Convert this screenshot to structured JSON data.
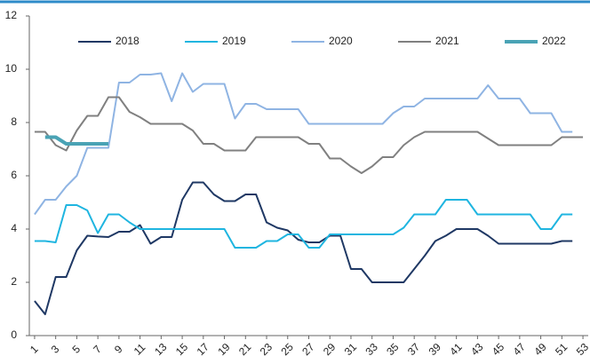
{
  "chart_data": {
    "type": "line",
    "x": [
      1,
      2,
      3,
      4,
      5,
      6,
      7,
      8,
      9,
      10,
      11,
      12,
      13,
      14,
      15,
      16,
      17,
      18,
      19,
      20,
      21,
      22,
      23,
      24,
      25,
      26,
      27,
      28,
      29,
      30,
      31,
      32,
      33,
      34,
      35,
      36,
      37,
      38,
      39,
      40,
      41,
      42,
      43,
      44,
      45,
      46,
      47,
      48,
      49,
      50,
      51,
      52,
      53
    ],
    "xlim": [
      0.5,
      53.5
    ],
    "xticks": [
      1,
      3,
      5,
      7,
      9,
      11,
      13,
      15,
      17,
      19,
      21,
      23,
      25,
      27,
      29,
      31,
      33,
      35,
      37,
      39,
      41,
      43,
      45,
      47,
      49,
      51,
      53
    ],
    "ylim": [
      0,
      12
    ],
    "yticks": [
      0,
      2,
      4,
      6,
      8,
      10,
      12
    ],
    "series": [
      {
        "name": "2018",
        "color": "#1f3864",
        "width": 2,
        "values": [
          1.3,
          0.8,
          2.2,
          2.2,
          3.2,
          3.75,
          3.72,
          3.7,
          3.9,
          3.9,
          4.15,
          3.45,
          3.7,
          3.7,
          5.1,
          5.75,
          5.75,
          5.3,
          5.05,
          5.05,
          5.3,
          5.3,
          4.25,
          4.05,
          3.95,
          3.6,
          3.5,
          3.5,
          3.75,
          3.75,
          2.5,
          2.5,
          2.0,
          2.0,
          2.0,
          2.0,
          2.5,
          3.0,
          3.55,
          3.75,
          4.0,
          4.0,
          4.0,
          3.75,
          3.45,
          3.45,
          3.45,
          3.45,
          3.45,
          3.45,
          3.55,
          3.55,
          null
        ]
      },
      {
        "name": "2019",
        "color": "#1fb5e0",
        "width": 2,
        "values": [
          3.55,
          3.55,
          3.5,
          4.9,
          4.9,
          4.7,
          3.85,
          4.55,
          4.55,
          4.25,
          4.0,
          4.0,
          4.0,
          4.0,
          4.0,
          4.0,
          4.0,
          4.0,
          4.0,
          3.3,
          3.3,
          3.3,
          3.55,
          3.55,
          3.8,
          3.8,
          3.3,
          3.3,
          3.8,
          3.8,
          3.8,
          3.8,
          3.8,
          3.8,
          3.8,
          4.05,
          4.55,
          4.55,
          4.55,
          5.1,
          5.1,
          5.1,
          4.55,
          4.55,
          4.55,
          4.55,
          4.55,
          4.55,
          4.0,
          4.0,
          4.55,
          4.55,
          null
        ]
      },
      {
        "name": "2020",
        "color": "#8fb4e3",
        "width": 2,
        "values": [
          4.55,
          5.1,
          5.1,
          5.6,
          6.0,
          7.05,
          7.05,
          7.05,
          9.5,
          9.5,
          9.8,
          9.8,
          9.85,
          8.8,
          9.85,
          9.15,
          9.45,
          9.45,
          9.45,
          8.15,
          8.7,
          8.7,
          8.5,
          8.5,
          8.5,
          8.5,
          7.95,
          7.95,
          7.95,
          7.95,
          7.95,
          7.95,
          7.95,
          7.95,
          8.35,
          8.6,
          8.6,
          8.9,
          8.9,
          8.9,
          8.9,
          8.9,
          8.9,
          9.4,
          8.9,
          8.9,
          8.9,
          8.35,
          8.35,
          8.35,
          7.65,
          7.65,
          null
        ]
      },
      {
        "name": "2021",
        "color": "#808080",
        "width": 2,
        "values": [
          7.65,
          7.65,
          7.15,
          6.95,
          7.7,
          8.25,
          8.25,
          8.95,
          8.95,
          8.4,
          8.2,
          7.95,
          7.95,
          7.95,
          7.95,
          7.7,
          7.2,
          7.2,
          6.95,
          6.95,
          6.95,
          7.45,
          7.45,
          7.45,
          7.45,
          7.45,
          7.2,
          7.2,
          6.65,
          6.65,
          6.35,
          6.1,
          6.35,
          6.7,
          6.7,
          7.15,
          7.45,
          7.65,
          7.65,
          7.65,
          7.65,
          7.65,
          7.65,
          7.4,
          7.15,
          7.15,
          7.15,
          7.15,
          7.15,
          7.15,
          7.45,
          7.45,
          7.45
        ]
      },
      {
        "name": "2022",
        "color": "#4aa3b5",
        "width": 4,
        "values": [
          null,
          7.45,
          7.45,
          7.2,
          7.2,
          7.2,
          7.2,
          7.2,
          null,
          null,
          null,
          null,
          null,
          null,
          null,
          null,
          null,
          null,
          null,
          null,
          null,
          null,
          null,
          null,
          null,
          null,
          null,
          null,
          null,
          null,
          null,
          null,
          null,
          null,
          null,
          null,
          null,
          null,
          null,
          null,
          null,
          null,
          null,
          null,
          null,
          null,
          null,
          null,
          null,
          null,
          null,
          null,
          null
        ]
      }
    ]
  }
}
